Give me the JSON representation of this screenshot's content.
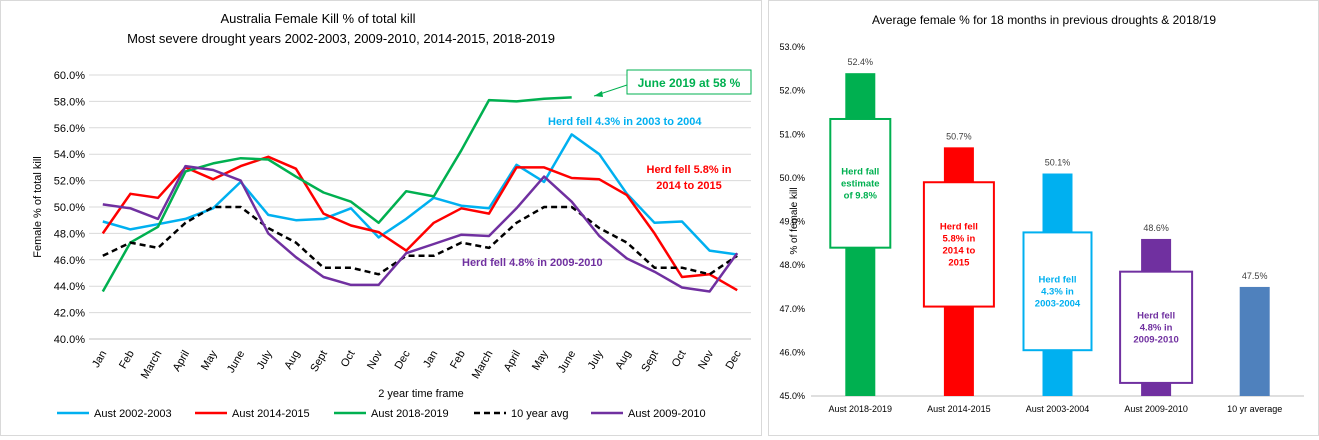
{
  "chart_data": [
    {
      "type": "line",
      "title": "Australia Female Kill % of total kill",
      "subtitle": "Most severe drought  years 2002-2003, 2009-2010, 2014-2015, 2018-2019",
      "xlabel": "2 year time frame",
      "ylabel": "Female % of total kill",
      "ylim": [
        40,
        60
      ],
      "grid": true,
      "legend_placement": "bottom",
      "ytick_labels": [
        "40.0%",
        "42.0%",
        "44.0%",
        "46.0%",
        "48.0%",
        "50.0%",
        "52.0%",
        "54.0%",
        "56.0%",
        "58.0%",
        "60.0%"
      ],
      "categories": [
        "Jan",
        "Feb",
        "March",
        "April",
        "May",
        "June",
        "July",
        "Aug",
        "Sept",
        "Oct",
        "Nov",
        "Dec",
        "Jan",
        "Feb",
        "March",
        "April",
        "May",
        "June",
        "July",
        "Aug",
        "Sept",
        "Oct",
        "Nov",
        "Dec"
      ],
      "series": [
        {
          "name": "Aust 2002-2003",
          "color": "#00b0f0",
          "dash": false,
          "values": [
            48.9,
            48.3,
            48.7,
            49.1,
            49.9,
            51.9,
            49.4,
            49.0,
            49.1,
            49.9,
            47.7,
            49.1,
            50.7,
            50.1,
            49.9,
            53.2,
            51.9,
            55.5,
            54.0,
            51.0,
            48.8,
            48.9,
            46.7,
            46.4
          ]
        },
        {
          "name": "Aust 2014-2015",
          "color": "#ff0000",
          "dash": false,
          "values": [
            48.0,
            51.0,
            50.7,
            53.0,
            52.1,
            53.1,
            53.8,
            52.9,
            49.5,
            48.6,
            48.1,
            46.7,
            48.8,
            49.9,
            49.5,
            53.0,
            53.0,
            52.2,
            52.1,
            50.9,
            48.0,
            44.7,
            44.9,
            43.7
          ]
        },
        {
          "name": "Aust 2018-2019",
          "color": "#00b050",
          "dash": false,
          "values": [
            43.6,
            47.3,
            48.5,
            52.7,
            53.3,
            53.7,
            53.6,
            52.3,
            51.1,
            50.4,
            48.8,
            51.2,
            50.8,
            54.3,
            58.1,
            58.0,
            58.2,
            58.3,
            null,
            null,
            null,
            null,
            null,
            null
          ]
        },
        {
          "name": "10 year avg",
          "color": "#000000",
          "dash": true,
          "values": [
            46.3,
            47.3,
            46.9,
            48.8,
            50.0,
            50.0,
            48.4,
            47.3,
            45.4,
            45.4,
            44.9,
            46.3,
            46.3,
            47.3,
            46.9,
            48.8,
            50.0,
            50.0,
            48.4,
            47.3,
            45.4,
            45.4,
            44.9,
            46.3
          ]
        },
        {
          "name": "Aust 2009-2010",
          "color": "#7030a0",
          "dash": false,
          "values": [
            50.2,
            49.9,
            49.1,
            53.1,
            52.8,
            52.0,
            48.0,
            46.2,
            44.7,
            44.1,
            44.1,
            46.5,
            47.2,
            47.9,
            47.8,
            49.9,
            52.3,
            50.4,
            47.8,
            46.1,
            45.1,
            43.9,
            43.6,
            46.5
          ]
        }
      ],
      "annotations": [
        {
          "text": "June 2019 at  58 %",
          "color": "#00b050",
          "boxed": true
        },
        {
          "text": "Herd fell 4.3% in 2003 to 2004",
          "color": "#00b0f0"
        },
        {
          "text_lines": [
            "Herd fell 5.8% in",
            "2014 to 2015"
          ],
          "color": "#ff0000"
        },
        {
          "text": "Herd fell 4.8%  in 2009-2010",
          "color": "#7030a0"
        }
      ]
    },
    {
      "type": "bar",
      "title": "Average female % for 18 months  in previous droughts & 2018/19",
      "ylabel": "% of female kill",
      "ylim": [
        45,
        53
      ],
      "ytick_labels": [
        "45.0%",
        "46.0%",
        "47.0%",
        "48.0%",
        "49.0%",
        "50.0%",
        "51.0%",
        "52.0%",
        "53.0%"
      ],
      "categories": [
        "Aust 2018-2019",
        "Aust 2014-2015",
        "Aust 2003-2004",
        "Aust 2009-2010",
        "10 yr average"
      ],
      "values": [
        52.4,
        50.7,
        50.1,
        48.6,
        47.5
      ],
      "data_labels": [
        "52.4%",
        "50.7%",
        "50.1%",
        "48.6%",
        "47.5%"
      ],
      "colors": [
        "#00b050",
        "#ff0000",
        "#00b0f0",
        "#7030a0",
        "#4f81bd"
      ],
      "annotations": [
        {
          "lines": [
            "Herd fall",
            "estimate",
            "of 9.8%"
          ],
          "color": "#00b050"
        },
        {
          "lines": [
            "Herd fell",
            "5.8% in",
            "2014 to",
            "2015"
          ],
          "color": "#ff0000"
        },
        {
          "lines": [
            "Herd fell",
            "4.3% in",
            "2003-2004"
          ],
          "color": "#00b0f0"
        },
        {
          "lines": [
            "Herd fell",
            "4.8% in",
            "2009-2010"
          ],
          "color": "#7030a0"
        }
      ]
    }
  ]
}
